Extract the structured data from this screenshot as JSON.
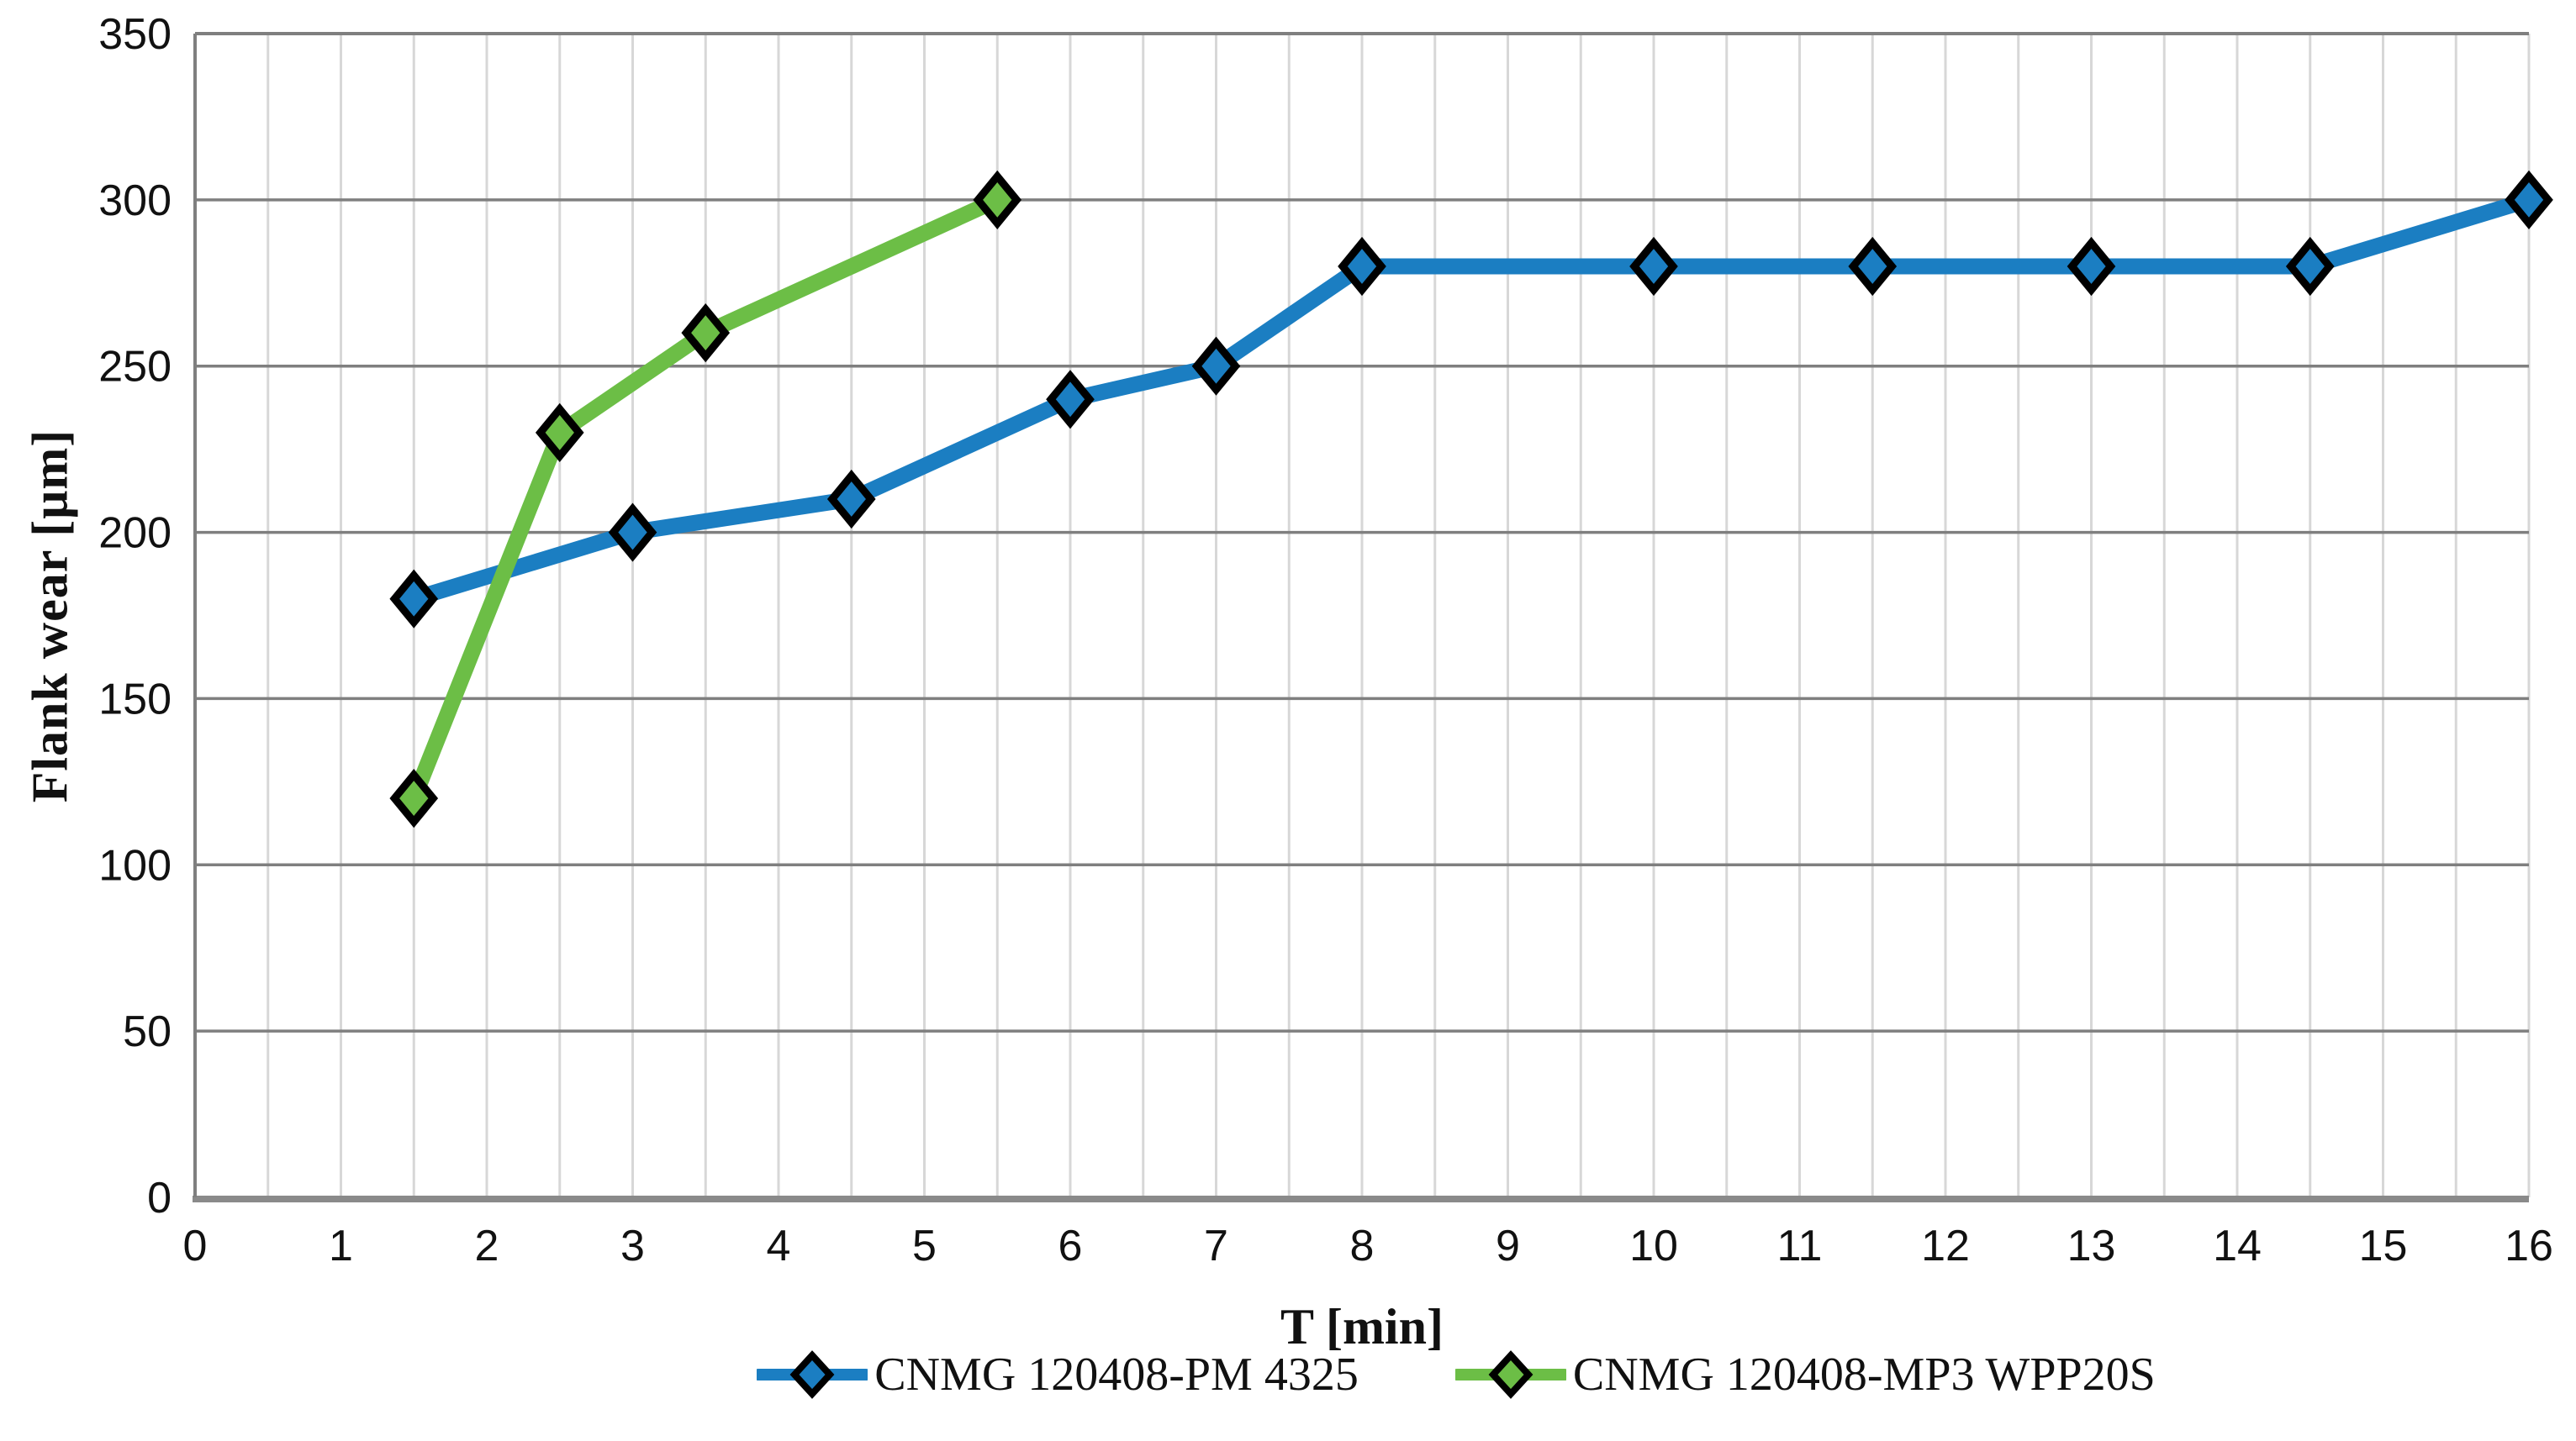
{
  "figure": {
    "background": "#ffffff"
  },
  "style": {
    "minor_grid_color": "#d7d7d7",
    "major_grid_color": "#7f7f7f",
    "axis_line_color": "#8a8a8a",
    "plot_border_color": "#7f7f7f",
    "tick_label_color": "#111111",
    "marker_outline_color": "#000000"
  },
  "chart_data": {
    "type": "line",
    "title": "",
    "xlabel": "T [min]",
    "ylabel": "Flank wear [μm]",
    "xlim": [
      0,
      16
    ],
    "ylim": [
      0,
      350
    ],
    "x_ticks": [
      0,
      1,
      2,
      3,
      4,
      5,
      6,
      7,
      8,
      9,
      10,
      11,
      12,
      13,
      14,
      15,
      16
    ],
    "y_ticks": [
      0,
      50,
      100,
      150,
      200,
      250,
      300,
      350
    ],
    "x_minor_grid_step": 0.5,
    "grid": "on",
    "legend_position": "bottom",
    "marker": "diamond",
    "series": [
      {
        "name": "CNMG 120408-PM 4325",
        "color": "#1b7ec2",
        "x": [
          1.5,
          3,
          4.5,
          6,
          7,
          8,
          10,
          11.5,
          13,
          14.5,
          16
        ],
        "y": [
          180,
          200,
          210,
          240,
          250,
          280,
          280,
          280,
          280,
          280,
          300
        ]
      },
      {
        "name": "CNMG 120408-MP3 WPP20S",
        "color": "#6cbe46",
        "x": [
          1.5,
          2.5,
          3.5,
          5.5
        ],
        "y": [
          120,
          230,
          260,
          300
        ]
      }
    ]
  }
}
